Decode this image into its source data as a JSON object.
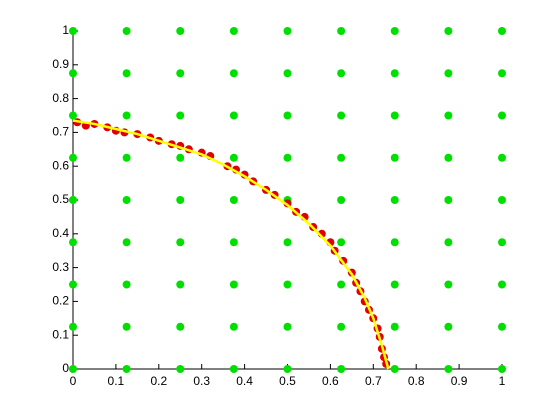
{
  "chart_data": {
    "type": "scatter",
    "xlim": [
      0,
      1
    ],
    "ylim": [
      0,
      1
    ],
    "xticks": [
      0,
      0.1,
      0.2,
      0.3,
      0.4,
      0.5,
      0.6,
      0.7,
      0.8,
      0.9,
      1
    ],
    "yticks": [
      0,
      0.1,
      0.2,
      0.3,
      0.4,
      0.5,
      0.6,
      0.7,
      0.8,
      0.9,
      1
    ],
    "series": [
      {
        "color": "#00e000",
        "mode": "markers",
        "x": [
          0,
          0,
          0,
          0,
          0,
          0,
          0,
          0,
          0,
          0.125,
          0.125,
          0.125,
          0.125,
          0.125,
          0.125,
          0.125,
          0.125,
          0.125,
          0.25,
          0.25,
          0.25,
          0.25,
          0.25,
          0.25,
          0.25,
          0.25,
          0.25,
          0.375,
          0.375,
          0.375,
          0.375,
          0.375,
          0.375,
          0.375,
          0.375,
          0.375,
          0.5,
          0.5,
          0.5,
          0.5,
          0.5,
          0.5,
          0.5,
          0.5,
          0.5,
          0.625,
          0.625,
          0.625,
          0.625,
          0.625,
          0.625,
          0.625,
          0.625,
          0.625,
          0.75,
          0.75,
          0.75,
          0.75,
          0.75,
          0.75,
          0.75,
          0.75,
          0.75,
          0.875,
          0.875,
          0.875,
          0.875,
          0.875,
          0.875,
          0.875,
          0.875,
          0.875,
          1,
          1,
          1,
          1,
          1,
          1,
          1,
          1,
          1
        ],
        "values": [
          0,
          0.125,
          0.25,
          0.375,
          0.5,
          0.625,
          0.75,
          0.875,
          1,
          0,
          0.125,
          0.25,
          0.375,
          0.5,
          0.625,
          0.75,
          0.875,
          1,
          0,
          0.125,
          0.25,
          0.375,
          0.5,
          0.625,
          0.75,
          0.875,
          1,
          0,
          0.125,
          0.25,
          0.375,
          0.5,
          0.625,
          0.75,
          0.875,
          1,
          0,
          0.125,
          0.25,
          0.375,
          0.5,
          0.625,
          0.75,
          0.875,
          1,
          0,
          0.125,
          0.25,
          0.375,
          0.5,
          0.625,
          0.75,
          0.875,
          1,
          0,
          0.125,
          0.25,
          0.375,
          0.5,
          0.625,
          0.75,
          0.875,
          1,
          0,
          0.125,
          0.25,
          0.375,
          0.5,
          0.625,
          0.75,
          0.875,
          1,
          0,
          0.125,
          0.25,
          0.375,
          0.5,
          0.625,
          0.75,
          0.875,
          1
        ]
      },
      {
        "color": "#e00000",
        "mode": "markers",
        "x": [
          0.01,
          0.03,
          0.05,
          0.08,
          0.1,
          0.12,
          0.15,
          0.18,
          0.2,
          0.23,
          0.25,
          0.27,
          0.3,
          0.32,
          0.36,
          0.38,
          0.4,
          0.42,
          0.45,
          0.47,
          0.5,
          0.52,
          0.54,
          0.56,
          0.58,
          0.6,
          0.61,
          0.63,
          0.65,
          0.66,
          0.67,
          0.68,
          0.69,
          0.7,
          0.71,
          0.715,
          0.72,
          0.725,
          0.73
        ],
        "values": [
          0.73,
          0.72,
          0.725,
          0.715,
          0.705,
          0.7,
          0.695,
          0.685,
          0.675,
          0.665,
          0.66,
          0.65,
          0.64,
          0.63,
          0.6,
          0.59,
          0.575,
          0.555,
          0.53,
          0.515,
          0.49,
          0.465,
          0.45,
          0.42,
          0.4,
          0.375,
          0.35,
          0.32,
          0.285,
          0.255,
          0.23,
          0.2,
          0.175,
          0.15,
          0.12,
          0.095,
          0.06,
          0.035,
          0.015
        ]
      },
      {
        "color": "#ffff00",
        "mode": "line",
        "x": [
          0,
          0.05,
          0.1,
          0.15,
          0.2,
          0.25,
          0.3,
          0.35,
          0.4,
          0.45,
          0.5,
          0.55,
          0.6,
          0.65,
          0.68,
          0.7,
          0.72,
          0.735
        ],
        "values": [
          0.735,
          0.725,
          0.71,
          0.695,
          0.675,
          0.655,
          0.635,
          0.605,
          0.57,
          0.53,
          0.485,
          0.43,
          0.365,
          0.28,
          0.21,
          0.15,
          0.07,
          0
        ]
      }
    ]
  }
}
